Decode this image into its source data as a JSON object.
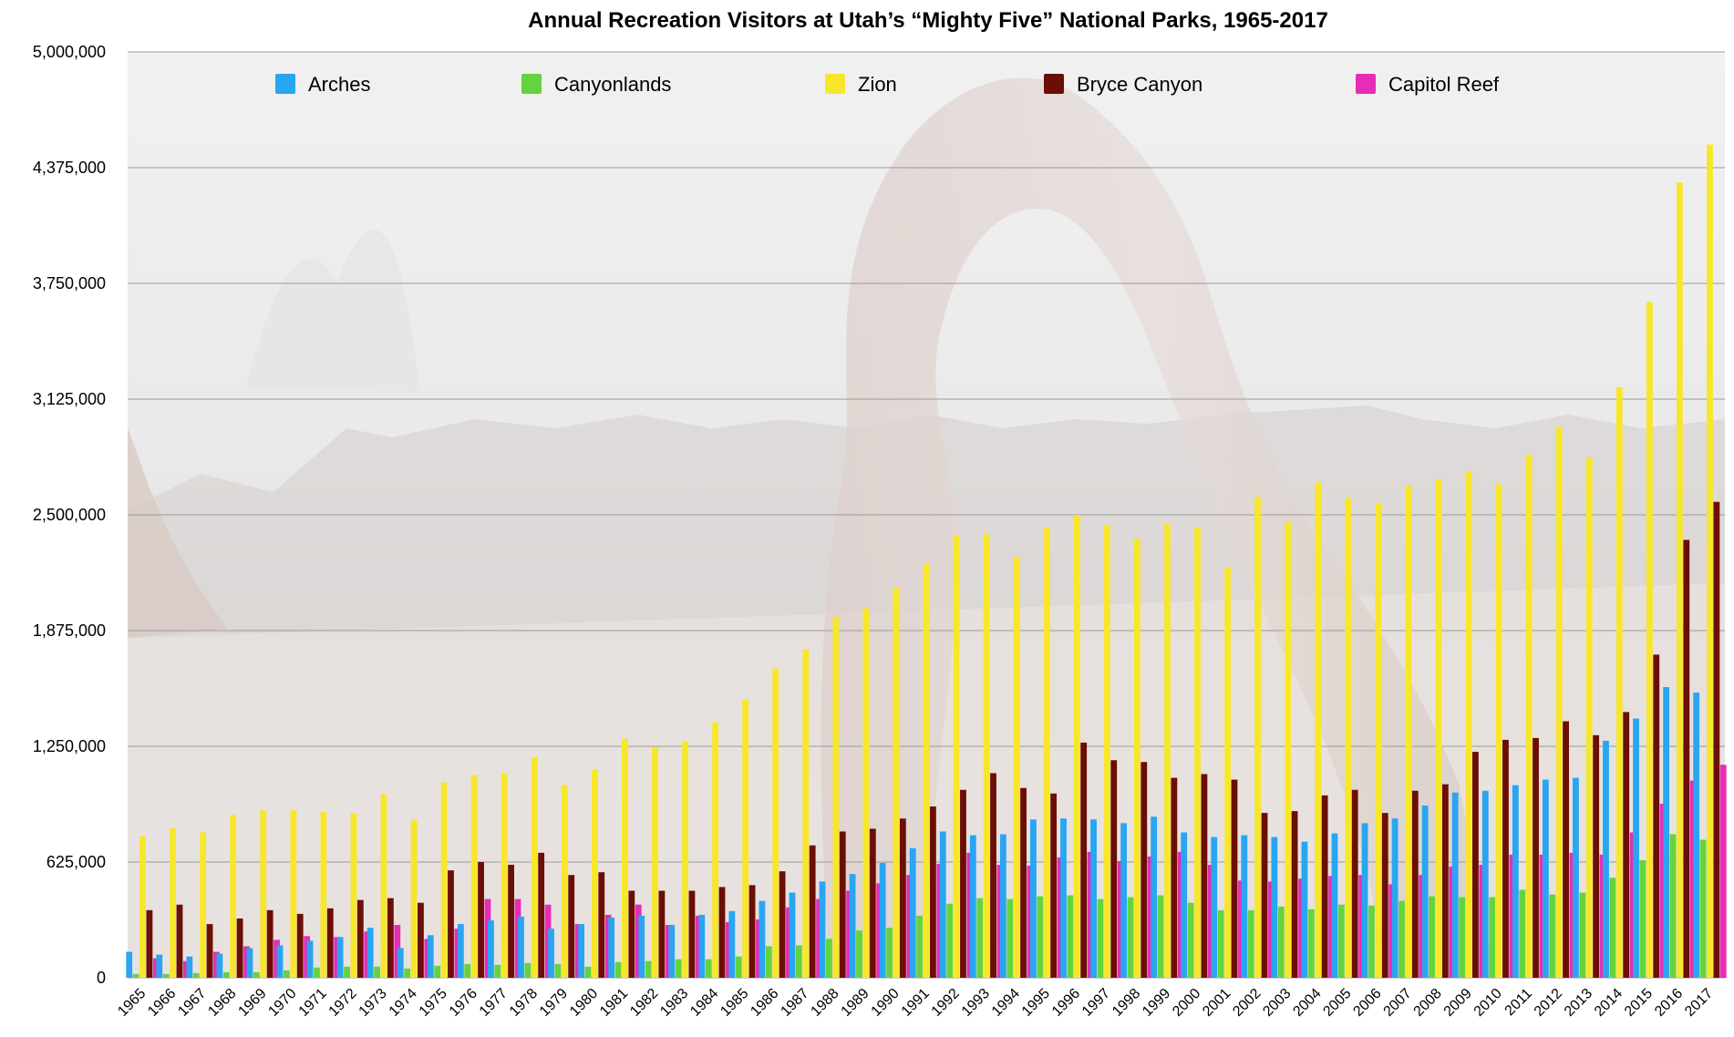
{
  "chart_data": {
    "type": "bar",
    "title": "Annual Recreation Visitors at Utah’s “Mighty Five” National Parks, 1965-2017",
    "xlabel": "",
    "ylabel": "",
    "ylim": [
      0,
      5000000
    ],
    "yticks": [
      0,
      625000,
      1250000,
      1875000,
      2500000,
      3125000,
      3750000,
      4375000,
      5000000
    ],
    "ytick_labels": [
      "0",
      "625,000",
      "1,250,000",
      "1,875,000",
      "2,500,000",
      "3,125,000",
      "3,750,000",
      "4,375,000",
      "5,000,000"
    ],
    "grid": true,
    "legend_position": "top",
    "background": "faded photograph of an arch",
    "categories": [
      "1965",
      "1966",
      "1967",
      "1968",
      "1969",
      "1970",
      "1971",
      "1972",
      "1973",
      "1974",
      "1975",
      "1976",
      "1977",
      "1978",
      "1979",
      "1980",
      "1981",
      "1982",
      "1983",
      "1984",
      "1985",
      "1986",
      "1987",
      "1988",
      "1989",
      "1990",
      "1991",
      "1992",
      "1993",
      "1994",
      "1995",
      "1996",
      "1997",
      "1998",
      "1999",
      "2000",
      "2001",
      "2002",
      "2003",
      "2004",
      "2005",
      "2006",
      "2007",
      "2008",
      "2009",
      "2010",
      "2011",
      "2012",
      "2013",
      "2014",
      "2015",
      "2016",
      "2017"
    ],
    "series": [
      {
        "name": "Arches",
        "color": "#2aa5f2",
        "values": [
          140000,
          125000,
          115000,
          130000,
          160000,
          175000,
          200000,
          220000,
          270000,
          160000,
          230000,
          290000,
          310000,
          330000,
          265000,
          290000,
          325000,
          335000,
          285000,
          340000,
          360000,
          415000,
          460000,
          520000,
          560000,
          620000,
          700000,
          790000,
          770000,
          775000,
          855000,
          860000,
          855000,
          835000,
          870000,
          785000,
          760000,
          770000,
          760000,
          735000,
          780000,
          835000,
          860000,
          930000,
          1000000,
          1010000,
          1040000,
          1070000,
          1080000,
          1280000,
          1400000,
          1570000,
          1540000
        ]
      },
      {
        "name": "Canyonlands",
        "color": "#63d43e",
        "values": [
          20000,
          20000,
          25000,
          30000,
          30000,
          40000,
          55000,
          60000,
          60000,
          50000,
          65000,
          75000,
          70000,
          80000,
          75000,
          60000,
          85000,
          90000,
          100000,
          100000,
          115000,
          170000,
          175000,
          210000,
          255000,
          270000,
          335000,
          400000,
          430000,
          425000,
          440000,
          445000,
          425000,
          435000,
          445000,
          405000,
          365000,
          365000,
          385000,
          370000,
          395000,
          390000,
          415000,
          440000,
          435000,
          435000,
          475000,
          450000,
          460000,
          540000,
          635000,
          775000,
          745000
        ]
      },
      {
        "name": "Zion",
        "color": "#f8e62b",
        "values": [
          765000,
          810000,
          785000,
          880000,
          905000,
          905000,
          895000,
          890000,
          990000,
          855000,
          1055000,
          1095000,
          1105000,
          1190000,
          1040000,
          1125000,
          1290000,
          1245000,
          1275000,
          1380000,
          1505000,
          1670000,
          1775000,
          1950000,
          1995000,
          2105000,
          2235000,
          2390000,
          2395000,
          2275000,
          2430000,
          2500000,
          2445000,
          2370000,
          2450000,
          2435000,
          2215000,
          2595000,
          2460000,
          2675000,
          2590000,
          2565000,
          2660000,
          2690000,
          2735000,
          2665000,
          2825000,
          2975000,
          2810000,
          3190000,
          3650000,
          4295000,
          4500000
        ]
      },
      {
        "name": "Bryce Canyon",
        "color": "#6b0e05",
        "values": [
          365000,
          395000,
          290000,
          320000,
          365000,
          345000,
          375000,
          420000,
          430000,
          405000,
          580000,
          625000,
          610000,
          675000,
          555000,
          570000,
          470000,
          470000,
          470000,
          490000,
          500000,
          575000,
          715000,
          790000,
          805000,
          860000,
          925000,
          1015000,
          1105000,
          1025000,
          995000,
          1270000,
          1175000,
          1165000,
          1080000,
          1100000,
          1070000,
          890000,
          900000,
          985000,
          1015000,
          890000,
          1010000,
          1045000,
          1220000,
          1285000,
          1295000,
          1385000,
          1310000,
          1435000,
          1745000,
          2365000,
          2570000
        ]
      },
      {
        "name": "Capitol Reef",
        "color": "#e72db6",
        "values": [
          105000,
          90000,
          140000,
          170000,
          205000,
          225000,
          220000,
          250000,
          285000,
          210000,
          265000,
          425000,
          425000,
          395000,
          290000,
          340000,
          395000,
          285000,
          335000,
          300000,
          315000,
          380000,
          425000,
          470000,
          510000,
          555000,
          615000,
          675000,
          610000,
          605000,
          650000,
          680000,
          630000,
          655000,
          680000,
          610000,
          525000,
          520000,
          535000,
          550000,
          555000,
          505000,
          555000,
          600000,
          610000,
          665000,
          665000,
          675000,
          665000,
          785000,
          940000,
          1065000,
          1150000
        ]
      }
    ]
  }
}
